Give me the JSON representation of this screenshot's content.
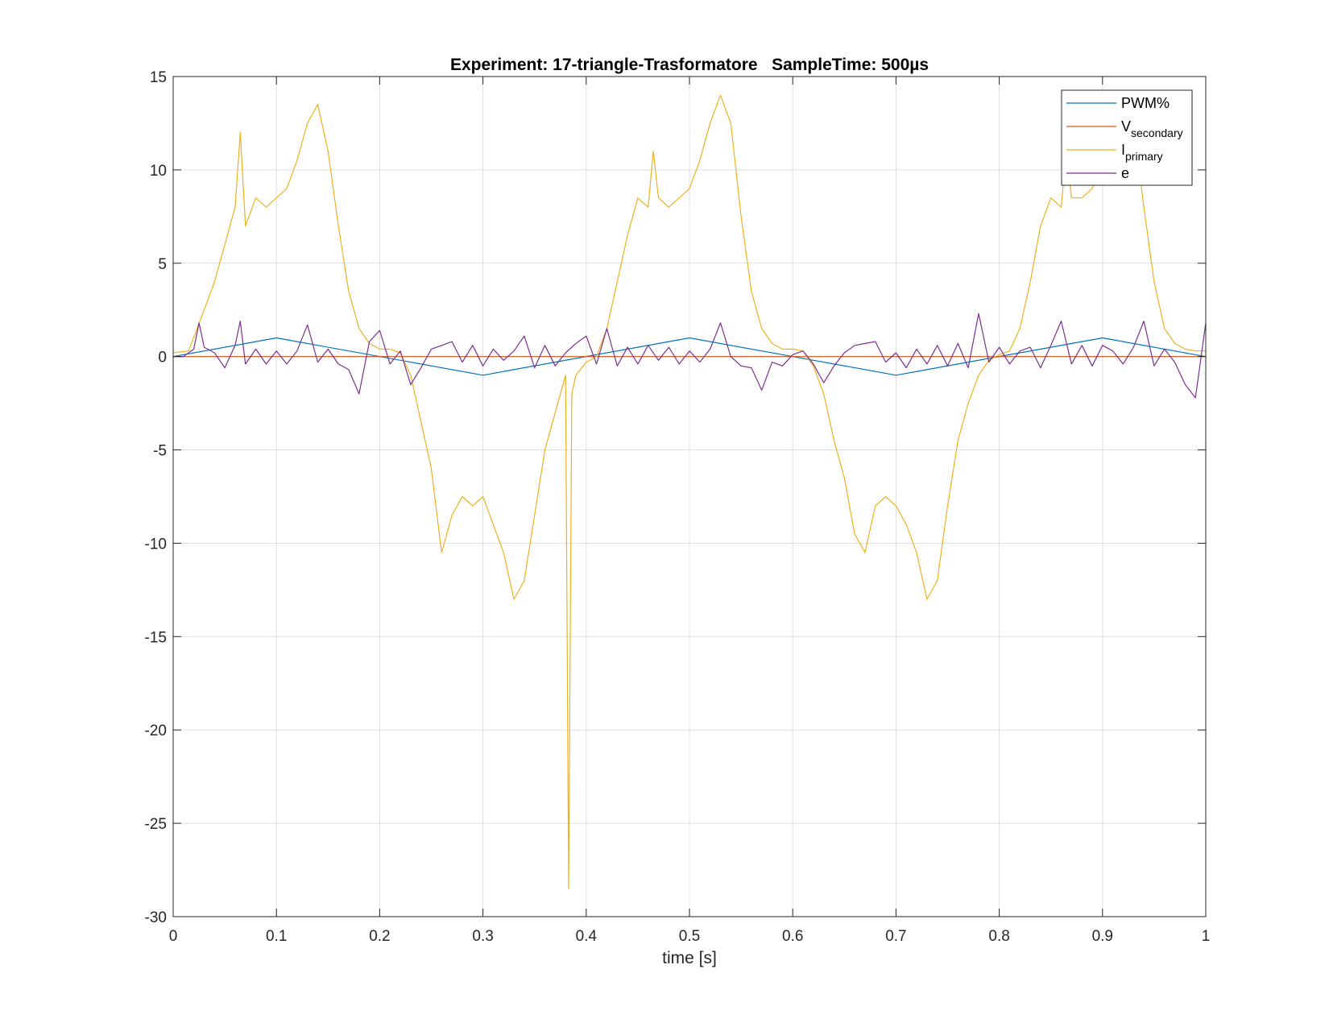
{
  "chart_data": {
    "type": "line",
    "title": "Experiment: 17-triangle-Trasformatore   SampleTime: 500µs",
    "xlabel": "time [s]",
    "ylabel": "",
    "xlim": [
      0,
      1
    ],
    "ylim": [
      -30,
      15
    ],
    "grid": true,
    "legend_position": "top-right",
    "x_ticks": [
      "0",
      "0.1",
      "0.2",
      "0.3",
      "0.4",
      "0.5",
      "0.6",
      "0.7",
      "0.8",
      "0.9",
      "1"
    ],
    "y_ticks": [
      "15",
      "10",
      "5",
      "0",
      "-5",
      "-10",
      "-15",
      "-20",
      "-25",
      "-30"
    ],
    "series": [
      {
        "name": "PWM%",
        "legend_main": "PWM%",
        "legend_sub": "",
        "color": "#0072BD",
        "x": [
          0,
          0.1,
          0.3,
          0.5,
          0.7,
          0.9,
          1.0
        ],
        "y": [
          0,
          1,
          -1,
          1,
          -1,
          1,
          0
        ]
      },
      {
        "name": "V_secondary",
        "legend_main": "V",
        "legend_sub": "secondary",
        "color": "#D95319",
        "x": [
          0,
          1
        ],
        "y": [
          0,
          0
        ]
      },
      {
        "name": "I_primary",
        "legend_main": "I",
        "legend_sub": "primary",
        "color": "#EDB120",
        "x": [
          0,
          0.015,
          0.03,
          0.04,
          0.05,
          0.06,
          0.065,
          0.07,
          0.08,
          0.09,
          0.1,
          0.11,
          0.12,
          0.13,
          0.14,
          0.15,
          0.16,
          0.17,
          0.18,
          0.19,
          0.2,
          0.21,
          0.22,
          0.23,
          0.24,
          0.25,
          0.26,
          0.27,
          0.28,
          0.29,
          0.3,
          0.31,
          0.32,
          0.33,
          0.34,
          0.35,
          0.36,
          0.37,
          0.38,
          0.383,
          0.386,
          0.39,
          0.4,
          0.41,
          0.42,
          0.43,
          0.44,
          0.45,
          0.46,
          0.465,
          0.47,
          0.48,
          0.49,
          0.5,
          0.51,
          0.52,
          0.53,
          0.54,
          0.55,
          0.56,
          0.57,
          0.58,
          0.59,
          0.6,
          0.61,
          0.62,
          0.63,
          0.64,
          0.65,
          0.66,
          0.67,
          0.68,
          0.69,
          0.7,
          0.71,
          0.72,
          0.73,
          0.74,
          0.75,
          0.76,
          0.77,
          0.78,
          0.79,
          0.8,
          0.81,
          0.82,
          0.83,
          0.84,
          0.85,
          0.86,
          0.865,
          0.87,
          0.88,
          0.89,
          0.9,
          0.91,
          0.92,
          0.93,
          0.94,
          0.95,
          0.96,
          0.97,
          0.98,
          0.99,
          1.0
        ],
        "y": [
          0.2,
          0.3,
          2.5,
          4.0,
          6.0,
          8.0,
          12.0,
          7.0,
          8.5,
          8.0,
          8.5,
          9.0,
          10.5,
          12.5,
          13.5,
          11.0,
          7.0,
          3.5,
          1.5,
          0.7,
          0.4,
          0.4,
          0.2,
          -1.0,
          -3.5,
          -6.0,
          -10.5,
          -8.5,
          -7.5,
          -8.0,
          -7.5,
          -9.0,
          -10.5,
          -13.0,
          -12.0,
          -8.5,
          -5.0,
          -3.0,
          -1.0,
          -28.5,
          -2.0,
          -1.0,
          -0.3,
          0.0,
          1.5,
          4.0,
          6.5,
          8.5,
          8.0,
          11.0,
          8.5,
          8.0,
          8.5,
          9.0,
          10.5,
          12.5,
          14.0,
          12.5,
          7.5,
          3.5,
          1.5,
          0.7,
          0.4,
          0.4,
          0.3,
          -0.5,
          -2.0,
          -4.5,
          -6.5,
          -9.5,
          -10.5,
          -8.0,
          -7.5,
          -8.0,
          -9.0,
          -10.5,
          -13.0,
          -12.0,
          -8.0,
          -4.5,
          -2.5,
          -1.0,
          -0.2,
          0.1,
          0.3,
          1.5,
          4.0,
          7.0,
          8.5,
          8.0,
          11.0,
          8.5,
          8.5,
          9.0,
          10.5,
          12.5,
          14.0,
          12.5,
          8.0,
          4.0,
          1.5,
          0.7,
          0.4,
          0.3,
          0.3
        ]
      },
      {
        "name": "e",
        "legend_main": "e",
        "legend_sub": "",
        "color": "#7E2F8E",
        "x": [
          0,
          0.01,
          0.02,
          0.025,
          0.03,
          0.04,
          0.05,
          0.06,
          0.065,
          0.07,
          0.08,
          0.09,
          0.1,
          0.11,
          0.12,
          0.13,
          0.14,
          0.15,
          0.16,
          0.17,
          0.18,
          0.19,
          0.2,
          0.21,
          0.22,
          0.23,
          0.24,
          0.25,
          0.26,
          0.27,
          0.28,
          0.29,
          0.3,
          0.31,
          0.32,
          0.33,
          0.34,
          0.35,
          0.36,
          0.37,
          0.38,
          0.39,
          0.4,
          0.41,
          0.42,
          0.43,
          0.44,
          0.45,
          0.46,
          0.47,
          0.48,
          0.49,
          0.5,
          0.51,
          0.52,
          0.53,
          0.54,
          0.55,
          0.56,
          0.57,
          0.58,
          0.59,
          0.6,
          0.61,
          0.62,
          0.63,
          0.64,
          0.65,
          0.66,
          0.67,
          0.68,
          0.69,
          0.7,
          0.71,
          0.72,
          0.73,
          0.74,
          0.75,
          0.76,
          0.77,
          0.78,
          0.79,
          0.8,
          0.81,
          0.82,
          0.83,
          0.84,
          0.85,
          0.86,
          0.87,
          0.88,
          0.89,
          0.9,
          0.91,
          0.92,
          0.93,
          0.94,
          0.95,
          0.96,
          0.97,
          0.98,
          0.99,
          1.0
        ],
        "y": [
          0.0,
          0.0,
          0.4,
          1.8,
          0.5,
          0.2,
          -0.6,
          0.6,
          1.9,
          -0.4,
          0.4,
          -0.4,
          0.3,
          -0.4,
          0.3,
          1.7,
          -0.3,
          0.4,
          -0.4,
          -0.7,
          -2.0,
          0.8,
          1.4,
          -0.4,
          0.3,
          -1.5,
          -0.6,
          0.4,
          0.6,
          0.8,
          -0.3,
          0.6,
          -0.5,
          0.4,
          -0.2,
          0.3,
          1.1,
          -0.6,
          0.6,
          -0.5,
          0.2,
          0.7,
          1.1,
          -0.4,
          1.5,
          -0.5,
          0.5,
          -0.4,
          0.6,
          -0.2,
          0.5,
          -0.4,
          0.3,
          -0.3,
          0.4,
          1.8,
          0.0,
          -0.5,
          -0.6,
          -1.8,
          -0.3,
          -0.5,
          0.1,
          0.3,
          -0.4,
          -1.4,
          -0.5,
          0.2,
          0.6,
          0.7,
          0.8,
          -0.3,
          0.2,
          -0.6,
          0.4,
          -0.4,
          0.6,
          -0.5,
          0.7,
          -0.6,
          2.3,
          -0.3,
          0.5,
          -0.4,
          0.3,
          0.5,
          -0.6,
          0.6,
          1.9,
          -0.4,
          0.6,
          -0.5,
          0.6,
          0.3,
          -0.4,
          0.5,
          1.9,
          -0.5,
          0.4,
          -0.3,
          -1.5,
          -2.2,
          1.8
        ]
      }
    ]
  }
}
